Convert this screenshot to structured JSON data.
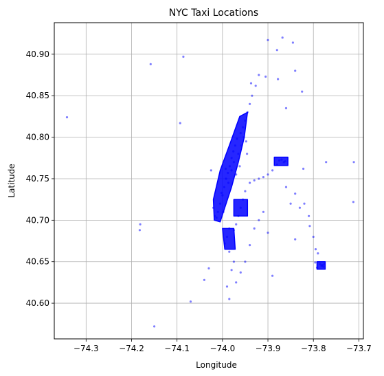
{
  "chart_data": {
    "type": "scatter",
    "title": "NYC Taxi Locations",
    "xlabel": "Longitude",
    "ylabel": "Latitude",
    "xlim": [
      -74.37,
      -73.69
    ],
    "ylim": [
      40.557,
      40.938
    ],
    "xticks": [
      -74.3,
      -74.2,
      -74.1,
      -74.0,
      -73.9,
      -73.8,
      -73.7
    ],
    "xtick_labels": [
      "−74.3",
      "−74.2",
      "−74.1",
      "−74.0",
      "−73.9",
      "−73.8",
      "−73.7"
    ],
    "yticks": [
      40.6,
      40.65,
      40.7,
      40.75,
      40.8,
      40.85,
      40.9
    ],
    "ytick_labels": [
      "40.60",
      "40.65",
      "40.70",
      "40.75",
      "40.80",
      "40.85",
      "40.90"
    ],
    "grid": true,
    "marker_color": "#0000ff",
    "marker_alpha": 0.5,
    "series": [
      {
        "points": [
          [
            -74.342,
            40.824
          ],
          [
            -74.181,
            40.695
          ],
          [
            -74.182,
            40.688
          ],
          [
            -74.158,
            40.888
          ],
          [
            -74.15,
            40.572
          ],
          [
            -74.093,
            40.817
          ],
          [
            -74.086,
            40.897
          ],
          [
            -74.07,
            40.602
          ],
          [
            -74.04,
            40.628
          ],
          [
            -74.03,
            40.642
          ],
          [
            -74.025,
            40.76
          ],
          [
            -74.02,
            40.715
          ],
          [
            -74.017,
            40.705
          ],
          [
            -74.013,
            40.703
          ],
          [
            -74.01,
            40.71
          ],
          [
            -74.005,
            40.72
          ],
          [
            -74.0,
            40.73
          ],
          [
            -73.996,
            40.74
          ],
          [
            -73.992,
            40.75
          ],
          [
            -73.988,
            40.757
          ],
          [
            -73.984,
            40.765
          ],
          [
            -73.98,
            40.775
          ],
          [
            -73.976,
            40.783
          ],
          [
            -73.972,
            40.79
          ],
          [
            -73.968,
            40.798
          ],
          [
            -73.96,
            40.805
          ],
          [
            -73.955,
            40.812
          ],
          [
            -73.95,
            40.82
          ],
          [
            -73.945,
            40.83
          ],
          [
            -73.94,
            40.84
          ],
          [
            -73.935,
            40.85
          ],
          [
            -73.937,
            40.865
          ],
          [
            -73.927,
            40.862
          ],
          [
            -73.92,
            40.875
          ],
          [
            -73.905,
            40.873
          ],
          [
            -73.9,
            40.917
          ],
          [
            -73.88,
            40.905
          ],
          [
            -73.868,
            40.92
          ],
          [
            -73.845,
            40.914
          ],
          [
            -73.878,
            40.87
          ],
          [
            -73.86,
            40.835
          ],
          [
            -73.84,
            40.88
          ],
          [
            -73.825,
            40.855
          ],
          [
            -73.87,
            40.773
          ],
          [
            -73.865,
            40.77
          ],
          [
            -73.875,
            40.772
          ],
          [
            -73.862,
            40.771
          ],
          [
            -73.88,
            40.767
          ],
          [
            -73.89,
            40.76
          ],
          [
            -73.9,
            40.755
          ],
          [
            -73.91,
            40.752
          ],
          [
            -73.92,
            40.75
          ],
          [
            -73.93,
            40.748
          ],
          [
            -73.94,
            40.745
          ],
          [
            -73.95,
            40.735
          ],
          [
            -73.955,
            40.725
          ],
          [
            -73.96,
            40.715
          ],
          [
            -73.965,
            40.705
          ],
          [
            -73.97,
            40.695
          ],
          [
            -73.975,
            40.688
          ],
          [
            -73.985,
            40.69
          ],
          [
            -73.99,
            40.68
          ],
          [
            -73.995,
            40.672
          ],
          [
            -73.985,
            40.662
          ],
          [
            -73.975,
            40.65
          ],
          [
            -73.98,
            40.64
          ],
          [
            -73.97,
            40.625
          ],
          [
            -73.985,
            40.605
          ],
          [
            -73.99,
            40.62
          ],
          [
            -73.96,
            40.637
          ],
          [
            -73.95,
            40.65
          ],
          [
            -73.94,
            40.67
          ],
          [
            -73.93,
            40.69
          ],
          [
            -73.92,
            40.7
          ],
          [
            -73.91,
            40.71
          ],
          [
            -73.9,
            40.685
          ],
          [
            -73.89,
            40.633
          ],
          [
            -73.86,
            40.74
          ],
          [
            -73.85,
            40.72
          ],
          [
            -73.84,
            40.732
          ],
          [
            -73.83,
            40.715
          ],
          [
            -73.82,
            40.72
          ],
          [
            -73.81,
            40.705
          ],
          [
            -73.808,
            40.693
          ],
          [
            -73.8,
            40.68
          ],
          [
            -73.795,
            40.665
          ],
          [
            -73.79,
            40.66
          ],
          [
            -73.785,
            40.647
          ],
          [
            -73.782,
            40.645
          ],
          [
            -73.78,
            40.646
          ],
          [
            -73.778,
            40.644
          ],
          [
            -73.776,
            40.647
          ],
          [
            -73.792,
            40.643
          ],
          [
            -73.796,
            40.649
          ],
          [
            -73.822,
            40.762
          ],
          [
            -73.84,
            40.677
          ],
          [
            -73.772,
            40.77
          ],
          [
            -73.711,
            40.77
          ],
          [
            -73.712,
            40.722
          ],
          [
            -73.998,
            40.71
          ],
          [
            -74.002,
            40.733
          ],
          [
            -73.993,
            40.762
          ],
          [
            -73.987,
            40.745
          ],
          [
            -73.98,
            40.76
          ],
          [
            -73.975,
            40.77
          ],
          [
            -73.965,
            40.78
          ],
          [
            -73.958,
            40.79
          ],
          [
            -73.953,
            40.8
          ],
          [
            -73.962,
            40.765
          ],
          [
            -73.97,
            40.755
          ],
          [
            -73.946,
            40.78
          ],
          [
            -73.948,
            40.795
          ]
        ]
      }
    ],
    "dense_regions": [
      {
        "polygon": [
          [
            -74.018,
            40.7
          ],
          [
            -74.02,
            40.725
          ],
          [
            -74.005,
            40.76
          ],
          [
            -73.985,
            40.79
          ],
          [
            -73.962,
            40.825
          ],
          [
            -73.945,
            40.83
          ],
          [
            -73.952,
            40.8
          ],
          [
            -73.965,
            40.77
          ],
          [
            -73.98,
            40.74
          ],
          [
            -73.995,
            40.715
          ],
          [
            -74.005,
            40.698
          ]
        ]
      },
      {
        "polygon": [
          [
            -73.886,
            40.776
          ],
          [
            -73.856,
            40.776
          ],
          [
            -73.856,
            40.766
          ],
          [
            -73.886,
            40.766
          ]
        ]
      },
      {
        "polygon": [
          [
            -73.792,
            40.65
          ],
          [
            -73.774,
            40.65
          ],
          [
            -73.774,
            40.641
          ],
          [
            -73.792,
            40.641
          ]
        ]
      },
      {
        "polygon": [
          [
            -73.975,
            40.725
          ],
          [
            -73.945,
            40.725
          ],
          [
            -73.945,
            40.705
          ],
          [
            -73.975,
            40.705
          ]
        ]
      },
      {
        "polygon": [
          [
            -74.0,
            40.69
          ],
          [
            -73.975,
            40.69
          ],
          [
            -73.972,
            40.665
          ],
          [
            -73.995,
            40.665
          ]
        ]
      }
    ]
  }
}
